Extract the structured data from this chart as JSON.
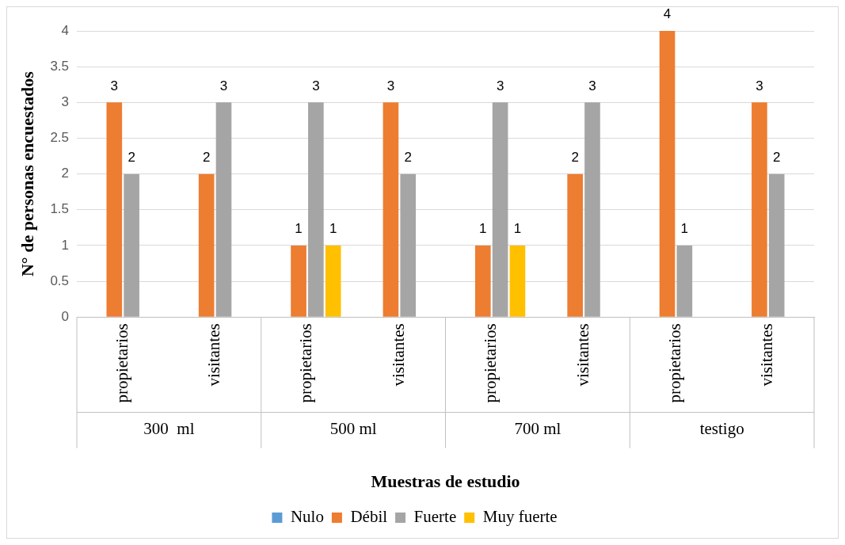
{
  "chart_data": {
    "type": "bar",
    "xlabel": "Muestras de estudio",
    "ylabel": "N° de personas encuestados",
    "categories": [
      "propietarios",
      "visitantes",
      "propietarios",
      "visitantes",
      "propietarios",
      "visitantes",
      "propietarios",
      "visitantes"
    ],
    "annotations": [
      "300  ml",
      "500 ml",
      "700 ml",
      "testigo"
    ],
    "series": [
      {
        "name": "Nulo",
        "color": "#5b9bd5",
        "values": [
          0,
          0,
          0,
          0,
          0,
          0,
          0,
          0
        ],
        "value_labels": [
          null,
          null,
          null,
          null,
          null,
          null,
          null,
          null
        ]
      },
      {
        "name": "Débil",
        "color": "#ed7d31",
        "values": [
          3,
          2,
          1,
          3,
          1,
          2,
          4,
          3
        ],
        "value_labels": [
          "3",
          "2",
          "1",
          "3",
          "1",
          "2",
          "4",
          "3"
        ]
      },
      {
        "name": "Fuerte",
        "color": "#a5a5a5",
        "values": [
          2,
          3,
          3,
          2,
          3,
          3,
          1,
          2
        ],
        "value_labels": [
          "2",
          "3",
          "3",
          "2",
          "3",
          "3",
          "1",
          "2"
        ]
      },
      {
        "name": "Muy fuerte",
        "color": "#ffc000",
        "values": [
          0,
          0,
          1,
          0,
          1,
          0,
          0,
          0
        ],
        "value_labels": [
          null,
          null,
          "1",
          null,
          "1",
          null,
          null,
          null
        ]
      }
    ],
    "ylim": [
      0,
      4
    ],
    "yticks": [
      0,
      0.5,
      1,
      1.5,
      2,
      2.5,
      3,
      3.5,
      4
    ],
    "grid": "y",
    "legend": "bottom"
  }
}
